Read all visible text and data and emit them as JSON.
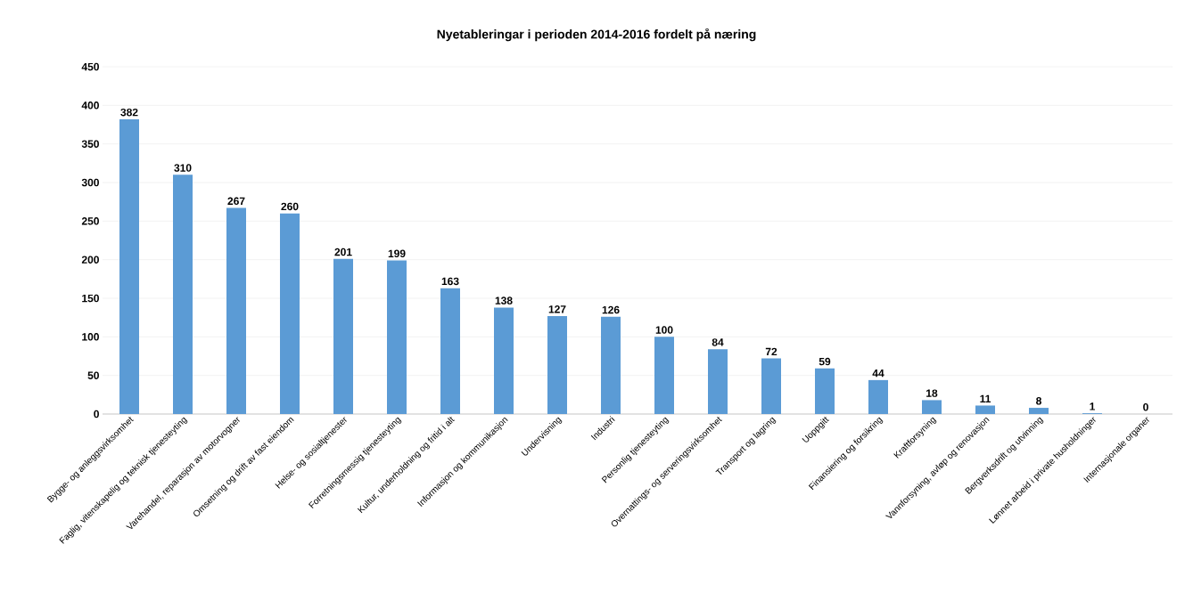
{
  "chart_data": {
    "type": "bar",
    "title": "Nyetableringar i perioden 2014-2016 fordelt på næring",
    "categories": [
      "Bygge- og anleggsvirksomhet",
      "Faglig, vitenskapelig og teknisk tjenesteyting",
      "Varehandel, reparasjon av motorvogner",
      "Omsetning og drift av fast eiendom",
      "Helse- og sosialtjenester",
      "Forretningsmessig tjenesteyting",
      "Kultur, underholdning og fritid i alt",
      "Informasjon og kommunikasjon",
      "Undervisning",
      "Industri",
      "Personlig tjenesteyting",
      "Overnattings- og serveringsvirksomhet",
      "Transport og lagring",
      "Uoppgitt",
      "Finansiering og forsikring",
      "Kraftforsyning",
      "Vannforsyning, avløp og renovasjon",
      "Bergverksdrift og utvinning",
      "Lønnet arbeid i private husholdninger",
      "Internasjonale organer"
    ],
    "values": [
      382,
      310,
      267,
      260,
      201,
      199,
      163,
      138,
      127,
      126,
      100,
      84,
      72,
      59,
      44,
      18,
      11,
      8,
      1,
      0
    ],
    "color": "#5b9bd5",
    "ylim": [
      0,
      450
    ],
    "yticks": [
      0,
      50,
      100,
      150,
      200,
      250,
      300,
      350,
      400,
      450
    ],
    "grid": "y",
    "data_labels": true
  }
}
